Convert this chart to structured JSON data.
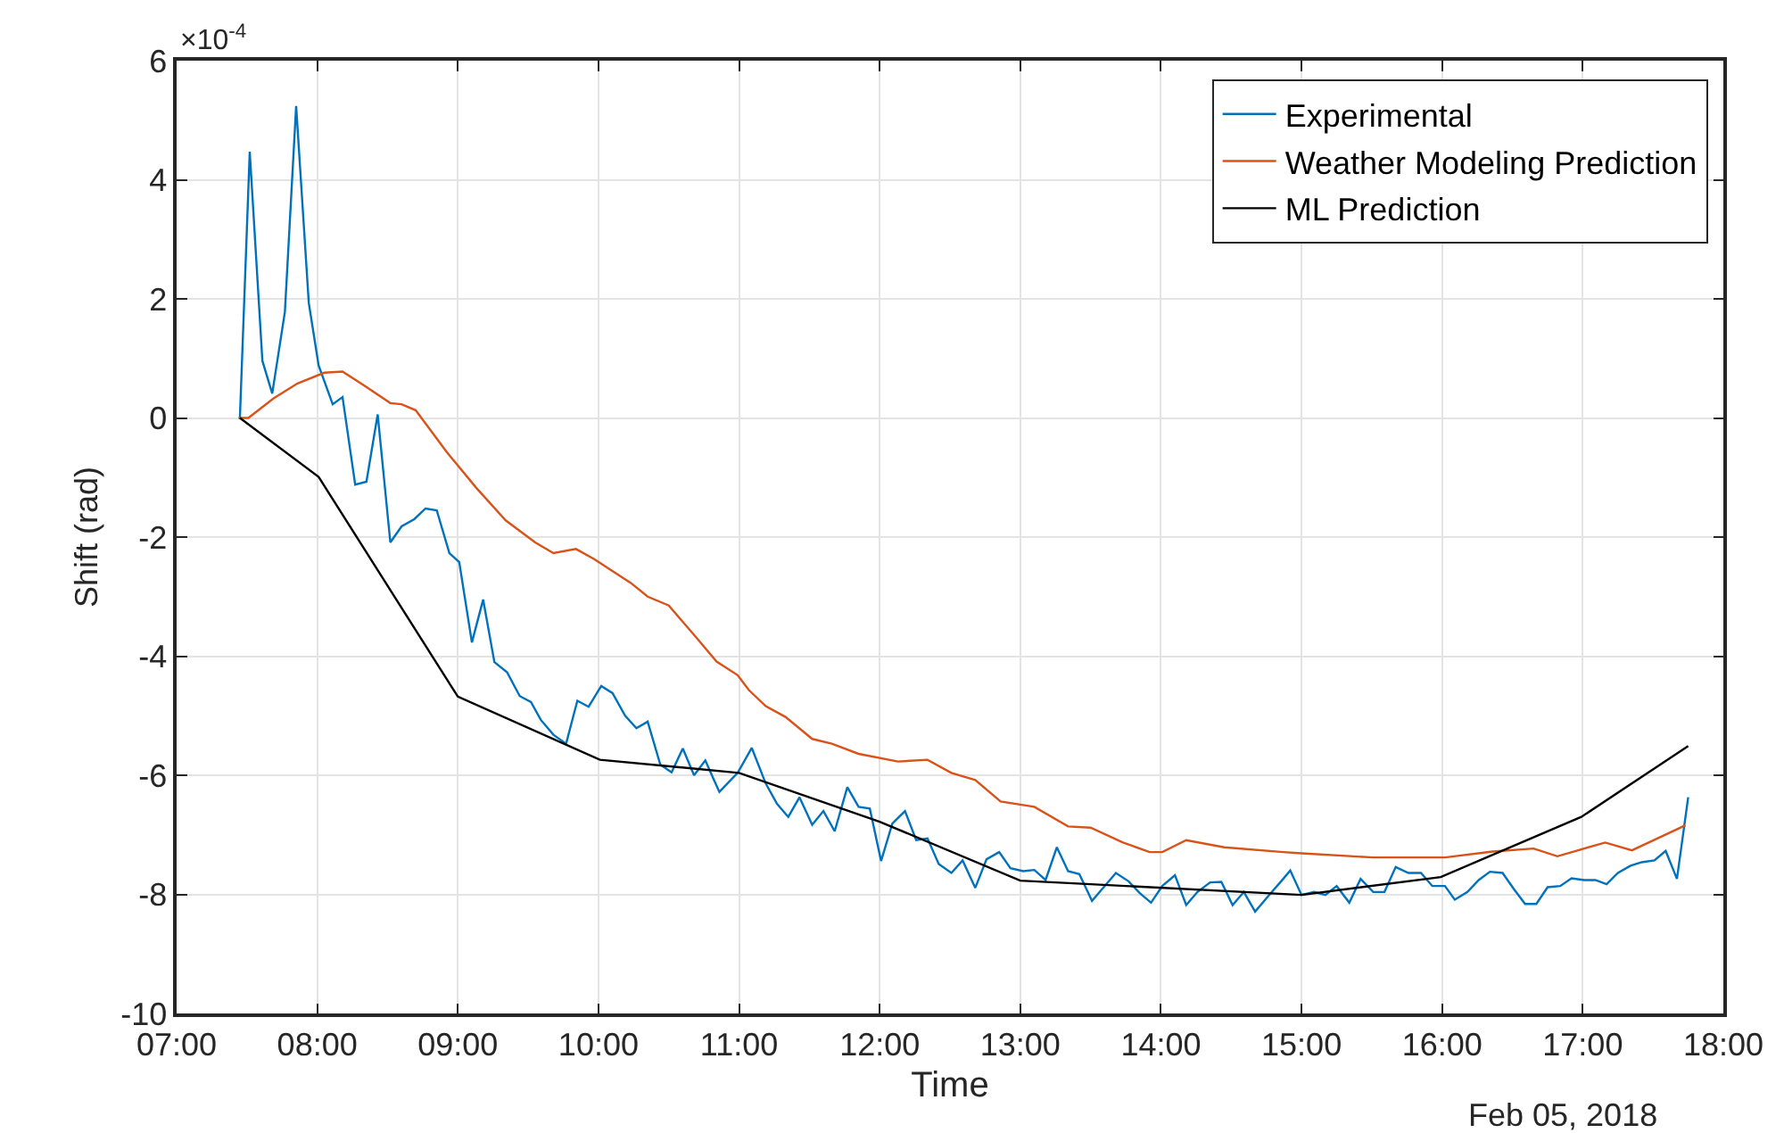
{
  "chart_data": {
    "type": "line",
    "xlabel": "Time",
    "ylabel": "Shift (rad)",
    "annotations": [
      "×10$^{-4}$",
      "Feb 05, 2018"
    ],
    "xlim": [
      7,
      18
    ],
    "xticks": [
      {
        "value": 7,
        "label": "07:00"
      },
      {
        "value": 8,
        "label": "08:00"
      },
      {
        "value": 9,
        "label": "09:00"
      },
      {
        "value": 10,
        "label": "10:00"
      },
      {
        "value": 11,
        "label": "11:00"
      },
      {
        "value": 12,
        "label": "12:00"
      },
      {
        "value": 13,
        "label": "13:00"
      },
      {
        "value": 14,
        "label": "14:00"
      },
      {
        "value": 15,
        "label": "15:00"
      },
      {
        "value": 16,
        "label": "16:00"
      },
      {
        "value": 17,
        "label": "17:00"
      },
      {
        "value": 18,
        "label": "18:00"
      }
    ],
    "ylim": [
      -10,
      6
    ],
    "yticks": [
      -10,
      -8,
      -6,
      -4,
      -2,
      0,
      2,
      4,
      6
    ],
    "grid": true,
    "legend": "top right",
    "line_style": "solid",
    "marker": "none",
    "series": [
      {
        "name": "Experimental",
        "color": "#0072bd",
        "x": [
          7.45,
          7.52,
          7.61,
          7.68,
          7.77,
          7.85,
          7.94,
          8.01,
          8.11,
          8.18,
          8.27,
          8.35,
          8.43,
          8.52,
          8.6,
          8.69,
          8.77,
          8.85,
          8.94,
          9.01,
          9.1,
          9.18,
          9.26,
          9.35,
          9.44,
          9.52,
          9.59,
          9.68,
          9.77,
          9.85,
          9.93,
          10.02,
          10.1,
          10.19,
          10.27,
          10.35,
          10.44,
          10.52,
          10.6,
          10.68,
          10.76,
          10.82,
          10.86,
          10.99,
          11.09,
          11.19,
          11.27,
          11.35,
          11.43,
          11.52,
          11.6,
          11.68,
          11.77,
          11.85,
          11.93,
          12.01,
          12.09,
          12.18,
          12.26,
          12.34,
          12.42,
          12.51,
          12.59,
          12.68,
          12.76,
          12.85,
          12.93,
          13.02,
          13.1,
          13.18,
          13.26,
          13.34,
          13.42,
          13.51,
          13.6,
          13.68,
          13.77,
          13.85,
          13.93,
          14.01,
          14.1,
          14.18,
          14.26,
          14.35,
          14.43,
          14.51,
          14.59,
          14.67,
          14.77,
          14.87,
          14.92,
          15.0,
          15.09,
          15.17,
          15.25,
          15.34,
          15.42,
          15.51,
          15.59,
          15.67,
          15.76,
          15.85,
          15.93,
          16.02,
          16.09,
          16.18,
          16.26,
          16.34,
          16.43,
          16.51,
          16.59,
          16.67,
          16.75,
          16.84,
          16.92,
          17.01,
          17.09,
          17.17,
          17.25,
          17.34,
          17.42,
          17.51,
          17.59,
          17.67,
          17.75
        ],
        "values": [
          0,
          4.47,
          0.96,
          0.41,
          1.78,
          5.24,
          1.93,
          0.88,
          0.23,
          0.35,
          -1.12,
          -1.07,
          0.06,
          -2.09,
          -1.82,
          -1.7,
          -1.52,
          -1.55,
          -2.27,
          -2.42,
          -3.77,
          -3.05,
          -4.1,
          -4.27,
          -4.67,
          -4.77,
          -5.07,
          -5.32,
          -5.47,
          -4.75,
          -4.85,
          -4.5,
          -4.62,
          -5.0,
          -5.21,
          -5.1,
          -5.82,
          -5.95,
          -5.55,
          -6.0,
          -5.75,
          -6.07,
          -6.28,
          -5.96,
          -5.54,
          -6.14,
          -6.48,
          -6.7,
          -6.37,
          -6.83,
          -6.6,
          -6.94,
          -6.2,
          -6.53,
          -6.56,
          -7.44,
          -6.81,
          -6.6,
          -7.09,
          -7.06,
          -7.49,
          -7.64,
          -7.43,
          -7.89,
          -7.41,
          -7.29,
          -7.56,
          -7.61,
          -7.59,
          -7.76,
          -7.21,
          -7.61,
          -7.66,
          -8.11,
          -7.86,
          -7.64,
          -7.78,
          -7.98,
          -8.14,
          -7.86,
          -7.68,
          -8.18,
          -7.96,
          -7.8,
          -7.79,
          -8.18,
          -7.96,
          -8.29,
          -8.01,
          -7.74,
          -7.6,
          -8.01,
          -7.96,
          -8.01,
          -7.86,
          -8.14,
          -7.74,
          -7.96,
          -7.96,
          -7.54,
          -7.64,
          -7.64,
          -7.86,
          -7.86,
          -8.09,
          -7.96,
          -7.76,
          -7.62,
          -7.64,
          -7.91,
          -8.16,
          -8.16,
          -7.88,
          -7.86,
          -7.73,
          -7.76,
          -7.76,
          -7.83,
          -7.64,
          -7.52,
          -7.46,
          -7.43,
          -7.27,
          -7.74,
          -6.37
        ]
      },
      {
        "name": "Weather Modeling Prediction",
        "color": "#d95319",
        "x": [
          7.44,
          7.51,
          7.69,
          7.86,
          8.05,
          8.18,
          8.33,
          8.52,
          8.6,
          8.7,
          8.92,
          9.13,
          9.34,
          9.55,
          9.68,
          9.84,
          9.97,
          10.23,
          10.35,
          10.5,
          10.69,
          10.84,
          10.99,
          11.07,
          11.19,
          11.33,
          11.52,
          11.66,
          11.85,
          12.13,
          12.34,
          12.51,
          12.68,
          12.86,
          13.1,
          13.34,
          13.5,
          13.73,
          13.92,
          14.01,
          14.18,
          14.45,
          14.87,
          15.0,
          15.51,
          16.02,
          16.36,
          16.65,
          16.82,
          17.16,
          17.35,
          17.73
        ],
        "values": [
          0,
          0,
          0.33,
          0.58,
          0.76,
          0.78,
          0.55,
          0.25,
          0.23,
          0.13,
          -0.57,
          -1.17,
          -1.72,
          -2.09,
          -2.27,
          -2.2,
          -2.37,
          -2.77,
          -3.0,
          -3.15,
          -3.67,
          -4.09,
          -4.32,
          -4.57,
          -4.84,
          -5.02,
          -5.39,
          -5.47,
          -5.64,
          -5.77,
          -5.74,
          -5.96,
          -6.08,
          -6.44,
          -6.53,
          -6.86,
          -6.88,
          -7.13,
          -7.29,
          -7.29,
          -7.09,
          -7.21,
          -7.29,
          -7.31,
          -7.38,
          -7.38,
          -7.28,
          -7.23,
          -7.36,
          -7.13,
          -7.26,
          -6.84
        ]
      },
      {
        "name": "ML Prediction",
        "color": "#000000",
        "x": [
          7.45,
          8.01,
          9.0,
          10.01,
          11.0,
          12.0,
          13.0,
          15.0,
          15.99,
          16.99,
          17.75
        ],
        "values": [
          0,
          -0.99,
          -4.68,
          -5.74,
          -5.96,
          -6.78,
          -7.77,
          -8.01,
          -7.71,
          -6.7,
          -5.51
        ]
      }
    ]
  }
}
